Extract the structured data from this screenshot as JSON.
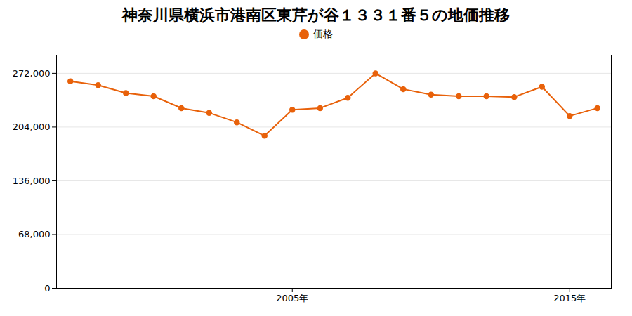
{
  "chart_data": {
    "type": "line",
    "title": "神奈川県横浜市港南区東芹が谷１３３１番５の地価推移",
    "x": [
      1997,
      1998,
      1999,
      2000,
      2001,
      2002,
      2003,
      2004,
      2005,
      2006,
      2007,
      2008,
      2009,
      2010,
      2011,
      2012,
      2013,
      2014,
      2015,
      2016
    ],
    "series": [
      {
        "name": "価格",
        "color": "#e8610a",
        "marker": "o",
        "values": [
          262000,
          257000,
          247000,
          243000,
          228000,
          222000,
          210000,
          193000,
          226000,
          228000,
          241000,
          272000,
          252000,
          245000,
          243000,
          243000,
          242000,
          255000,
          218000,
          228000
        ]
      }
    ],
    "xlim": [
      1996.5,
      2016.5
    ],
    "xticks": [
      {
        "value": 2005,
        "label": "2005年"
      },
      {
        "value": 2015,
        "label": "2015年"
      }
    ],
    "ylim": [
      0,
      295000
    ],
    "yticks": [
      0,
      {
        "value": 68000,
        "label": "68,000"
      },
      {
        "value": 136000,
        "label": "136,000"
      },
      {
        "value": 204000,
        "label": "204,000"
      },
      {
        "value": 272000,
        "label": "272,000"
      }
    ],
    "grid": true,
    "legend": "top"
  }
}
